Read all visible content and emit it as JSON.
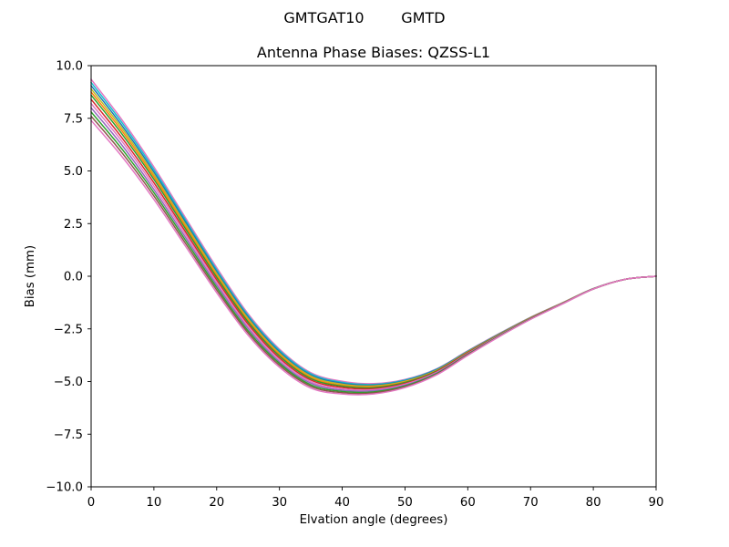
{
  "figure": {
    "suptitle": "GMTGAT10        GMTD",
    "background": "#ffffff",
    "text_color": "#000000"
  },
  "chart_data": {
    "type": "line",
    "title": "Antenna Phase Biases: QZSS-L1",
    "xlabel": "Elvation angle (degrees)",
    "ylabel": "Bias (mm)",
    "xlim": [
      0,
      90
    ],
    "ylim": [
      -10,
      10
    ],
    "xticks": [
      0,
      10,
      20,
      30,
      40,
      50,
      60,
      70,
      80,
      90
    ],
    "xticklabels": [
      "0",
      "10",
      "20",
      "30",
      "40",
      "50",
      "60",
      "70",
      "80",
      "90"
    ],
    "yticks": [
      10,
      7.5,
      5,
      2.5,
      0,
      -2.5,
      -5,
      -7.5,
      -10
    ],
    "yticklabels": [
      "10.0",
      "7.5",
      "5.0",
      "2.5",
      "0.0",
      "−2.5",
      "−5.0",
      "−7.5",
      "−10.0"
    ],
    "grid": false,
    "legend": "none",
    "line_width": 1.5,
    "x": [
      0,
      5,
      10,
      15,
      20,
      25,
      30,
      35,
      40,
      45,
      50,
      55,
      60,
      65,
      70,
      75,
      80,
      85,
      90
    ],
    "series": [
      {
        "name": "line-01",
        "color": "#e377c2",
        "values": [
          9.35,
          7.39,
          5.19,
          2.79,
          0.41,
          -1.78,
          -3.46,
          -4.58,
          -4.99,
          -5.1,
          -4.9,
          -4.4,
          -3.54,
          -2.72,
          -1.95,
          -1.27,
          -0.59,
          -0.15,
          0.0
        ]
      },
      {
        "name": "line-02",
        "color": "#17becf",
        "values": [
          9.2,
          7.26,
          5.07,
          2.69,
          0.31,
          -1.86,
          -3.52,
          -4.63,
          -5.04,
          -5.14,
          -4.93,
          -4.42,
          -3.56,
          -2.74,
          -1.96,
          -1.28,
          -0.59,
          -0.15,
          0.0
        ]
      },
      {
        "name": "line-03",
        "color": "#1f77b4",
        "values": [
          9.05,
          7.12,
          4.95,
          2.59,
          0.22,
          -1.93,
          -3.59,
          -4.69,
          -5.08,
          -5.17,
          -4.96,
          -4.44,
          -3.57,
          -2.75,
          -1.97,
          -1.28,
          -0.59,
          -0.15,
          0.0
        ]
      },
      {
        "name": "line-04",
        "color": "#bcbd22",
        "values": [
          8.9,
          6.99,
          4.83,
          2.48,
          0.13,
          -2.01,
          -3.66,
          -4.74,
          -5.13,
          -5.21,
          -4.99,
          -4.47,
          -3.59,
          -2.76,
          -1.97,
          -1.28,
          -0.59,
          -0.15,
          0.0
        ]
      },
      {
        "name": "line-05",
        "color": "#ff7f0e",
        "values": [
          8.75,
          6.86,
          4.72,
          2.38,
          0.04,
          -2.09,
          -3.72,
          -4.8,
          -5.18,
          -5.25,
          -5.02,
          -4.49,
          -3.61,
          -2.77,
          -1.98,
          -1.29,
          -0.6,
          -0.15,
          0.0
        ]
      },
      {
        "name": "line-06",
        "color": "#2ca02c",
        "values": [
          8.6,
          6.72,
          4.6,
          2.27,
          -0.05,
          -2.17,
          -3.79,
          -4.86,
          -5.22,
          -5.29,
          -5.05,
          -4.51,
          -3.62,
          -2.78,
          -1.99,
          -1.29,
          -0.6,
          -0.15,
          0.0
        ]
      },
      {
        "name": "line-07",
        "color": "#d62728",
        "values": [
          8.4,
          6.54,
          4.44,
          2.13,
          -0.17,
          -2.27,
          -3.88,
          -4.93,
          -5.28,
          -5.34,
          -5.09,
          -4.54,
          -3.64,
          -2.8,
          -2.0,
          -1.3,
          -0.6,
          -0.15,
          0.0
        ]
      },
      {
        "name": "line-08",
        "color": "#e377c2",
        "values": [
          8.2,
          6.37,
          4.28,
          2.0,
          -0.29,
          -2.38,
          -3.97,
          -5.01,
          -5.35,
          -5.39,
          -5.13,
          -4.57,
          -3.67,
          -2.81,
          -2.01,
          -1.3,
          -0.6,
          -0.15,
          0.0
        ]
      },
      {
        "name": "line-09",
        "color": "#9467bd",
        "values": [
          8.0,
          6.19,
          4.12,
          1.86,
          -0.41,
          -2.48,
          -4.06,
          -5.08,
          -5.41,
          -5.44,
          -5.17,
          -4.6,
          -3.69,
          -2.83,
          -2.02,
          -1.31,
          -0.6,
          -0.15,
          0.0
        ]
      },
      {
        "name": "line-10",
        "color": "#2ca02c",
        "values": [
          7.8,
          6.01,
          3.97,
          1.72,
          -0.53,
          -2.59,
          -4.14,
          -5.16,
          -5.47,
          -5.49,
          -5.21,
          -4.63,
          -3.71,
          -2.84,
          -2.03,
          -1.32,
          -0.61,
          -0.15,
          0.0
        ]
      },
      {
        "name": "line-11",
        "color": "#8c564b",
        "values": [
          7.6,
          5.83,
          3.81,
          1.58,
          -0.65,
          -2.69,
          -4.23,
          -5.23,
          -5.53,
          -5.54,
          -5.25,
          -4.66,
          -3.73,
          -2.86,
          -2.04,
          -1.32,
          -0.61,
          -0.15,
          0.0
        ]
      },
      {
        "name": "line-12",
        "color": "#e377c2",
        "values": [
          7.4,
          5.65,
          3.65,
          1.44,
          -0.78,
          -2.8,
          -4.32,
          -5.31,
          -5.59,
          -5.59,
          -5.29,
          -4.69,
          -3.76,
          -2.87,
          -2.05,
          -1.33,
          -0.61,
          -0.15,
          0.0
        ]
      }
    ]
  }
}
